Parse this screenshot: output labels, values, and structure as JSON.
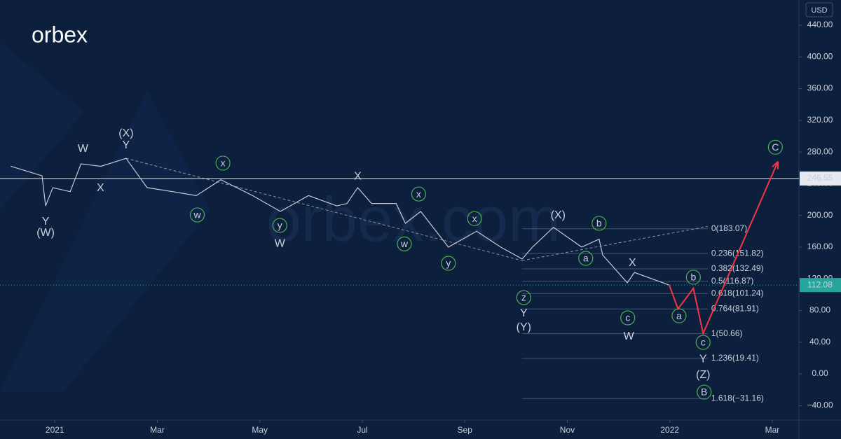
{
  "chart_data": {
    "type": "line",
    "logo": "orbex",
    "watermark": "orbex.com",
    "currency": "USD",
    "xlim": [
      -1.07,
      14.52
    ],
    "ylim": [
      -58.3,
      471.8
    ],
    "xticks": [
      {
        "value": 0,
        "label": "2021"
      },
      {
        "value": 2,
        "label": "Mar"
      },
      {
        "value": 4,
        "label": "May"
      },
      {
        "value": 6,
        "label": "Jul"
      },
      {
        "value": 8,
        "label": "Sep"
      },
      {
        "value": 10,
        "label": "Nov"
      },
      {
        "value": 12,
        "label": "2022"
      },
      {
        "value": 14,
        "label": "Mar"
      }
    ],
    "yticks": [
      {
        "value": 440,
        "label": "440.00"
      },
      {
        "value": 400,
        "label": "400.00"
      },
      {
        "value": 360,
        "label": "360.00"
      },
      {
        "value": 320,
        "label": "320.00"
      },
      {
        "value": 280,
        "label": "280.00"
      },
      {
        "value": 240,
        "label": "240.00"
      },
      {
        "value": 200,
        "label": "200.00"
      },
      {
        "value": 160,
        "label": "160.00"
      },
      {
        "value": 120,
        "label": "120.00"
      },
      {
        "value": 80,
        "label": "80.00"
      },
      {
        "value": 40,
        "label": "40.00"
      },
      {
        "value": 0,
        "label": "0.00"
      },
      {
        "value": -40,
        "label": "−40.00"
      }
    ],
    "series": [
      {
        "name": "Price",
        "color": "#c3c9d6",
        "x": [
          -0.86,
          -0.25,
          -0.18,
          -0.04,
          0.3,
          0.51,
          0.9,
          1.39,
          1.8,
          2.3,
          2.76,
          3.24,
          3.86,
          4.4,
          4.95,
          5.5,
          5.7,
          5.91,
          6.18,
          6.66,
          6.84,
          7.14,
          7.68,
          8.23,
          8.7,
          9.12,
          9.32,
          9.73,
          10.28,
          10.62,
          10.69,
          11.17,
          11.31,
          11.99
        ],
        "values": [
          262,
          250,
          212,
          235,
          230,
          265,
          262,
          272,
          235,
          230,
          225,
          245,
          225,
          205,
          225,
          212,
          215,
          235,
          215,
          215,
          190,
          205,
          160,
          180,
          160,
          145,
          160,
          185,
          160,
          170,
          150,
          115,
          128,
          112
        ]
      },
      {
        "name": "Projection",
        "color": "#f23645",
        "x": [
          11.99,
          12.16,
          12.46,
          12.65,
          14.11
        ],
        "values": [
          112,
          82,
          108,
          51,
          268
        ]
      }
    ],
    "trendlines": [
      {
        "x": [
          1.39,
          9.12
        ],
        "values": [
          272,
          143
        ],
        "color": "#c3c9d6"
      },
      {
        "x": [
          9.12,
          12.74
        ],
        "values": [
          143,
          186
        ],
        "color": "#c3c9d6"
      }
    ],
    "hlines": [
      {
        "value": 246.55,
        "color": "#e6e9ef",
        "style": "solid"
      },
      {
        "value": 112.08,
        "color": "#26a69a",
        "style": "dotted"
      }
    ],
    "fib_x": [
      9.12,
      12.74
    ],
    "fib_levels": [
      {
        "label": "0(183.07)",
        "value": 183.07
      },
      {
        "label": "0.236(151.82)",
        "value": 151.82
      },
      {
        "label": "0.382(132.49)",
        "value": 132.49
      },
      {
        "label": "0.5(116.87)",
        "value": 116.87
      },
      {
        "label": "0.618(101.24)",
        "value": 101.24
      },
      {
        "label": "0.764(81.91)",
        "value": 81.91
      },
      {
        "label": "1(50.66)",
        "value": 50.66
      },
      {
        "label": "1.236(19.41)",
        "value": 19.41
      },
      {
        "label": "1.618(−31.16)",
        "value": -31.16
      }
    ],
    "annotations": [
      {
        "text": "(X)",
        "x": 1.39,
        "y": 304,
        "color": "#2962ff",
        "circle": false
      },
      {
        "text": "Y",
        "x": 1.39,
        "y": 289,
        "color": "#f23645",
        "circle": false
      },
      {
        "text": "W",
        "x": 0.55,
        "y": 284.5,
        "color": "#f23645",
        "circle": false
      },
      {
        "text": "X",
        "x": 0.89,
        "y": 235,
        "color": "#f23645",
        "circle": false
      },
      {
        "text": "Y",
        "x": -0.18,
        "y": 192.6,
        "color": "#f23645",
        "circle": false
      },
      {
        "text": "(W)",
        "x": -0.18,
        "y": 178.5,
        "color": "#2962ff",
        "circle": false
      },
      {
        "text": "x",
        "x": 3.28,
        "y": 266,
        "color": "#4caf50",
        "circle": true
      },
      {
        "text": "w",
        "x": 2.78,
        "y": 200.6,
        "color": "#4caf50",
        "circle": true
      },
      {
        "text": "y",
        "x": 4.39,
        "y": 187.3,
        "color": "#4caf50",
        "circle": true
      },
      {
        "text": "W",
        "x": 4.39,
        "y": 165,
        "color": "#f23645",
        "circle": false
      },
      {
        "text": "X",
        "x": 5.91,
        "y": 250,
        "color": "#f23645",
        "circle": false
      },
      {
        "text": "x",
        "x": 7.1,
        "y": 227,
        "color": "#4caf50",
        "circle": true
      },
      {
        "text": "w",
        "x": 6.82,
        "y": 164,
        "color": "#4caf50",
        "circle": true
      },
      {
        "text": "x",
        "x": 8.19,
        "y": 196,
        "color": "#4caf50",
        "circle": true
      },
      {
        "text": "y",
        "x": 7.68,
        "y": 139.6,
        "color": "#4caf50",
        "circle": true
      },
      {
        "text": "(X)",
        "x": 9.82,
        "y": 200.6,
        "color": "#2962ff",
        "circle": false
      },
      {
        "text": "b",
        "x": 10.62,
        "y": 190,
        "color": "#4caf50",
        "circle": true
      },
      {
        "text": "a",
        "x": 10.36,
        "y": 145.8,
        "color": "#4caf50",
        "circle": true
      },
      {
        "text": "X",
        "x": 11.27,
        "y": 140.5,
        "color": "#f23645",
        "circle": false
      },
      {
        "text": "z",
        "x": 9.15,
        "y": 96.3,
        "color": "#4caf50",
        "circle": true
      },
      {
        "text": "Y",
        "x": 9.15,
        "y": 76.9,
        "color": "#f23645",
        "circle": false
      },
      {
        "text": "(Y)",
        "x": 9.15,
        "y": 59.2,
        "color": "#2962ff",
        "circle": false
      },
      {
        "text": "c",
        "x": 11.18,
        "y": 70.7,
        "color": "#4caf50",
        "circle": true
      },
      {
        "text": "W",
        "x": 11.2,
        "y": 47.7,
        "color": "#f23645",
        "circle": false
      },
      {
        "text": "b",
        "x": 12.46,
        "y": 122,
        "color": "#4caf50",
        "circle": true
      },
      {
        "text": "a",
        "x": 12.18,
        "y": 73.3,
        "color": "#4caf50",
        "circle": true
      },
      {
        "text": "c",
        "x": 12.65,
        "y": 39.8,
        "color": "#4caf50",
        "circle": true
      },
      {
        "text": "Y",
        "x": 12.65,
        "y": 19.4,
        "color": "#f23645",
        "circle": false
      },
      {
        "text": "(Z)",
        "x": 12.65,
        "y": -0.9,
        "color": "#2962ff",
        "circle": false
      },
      {
        "text": "B",
        "x": 12.67,
        "y": -23,
        "color": "#4caf50",
        "circle": true
      },
      {
        "text": "C",
        "x": 14.06,
        "y": 286,
        "color": "#4caf50",
        "circle": true
      }
    ]
  }
}
